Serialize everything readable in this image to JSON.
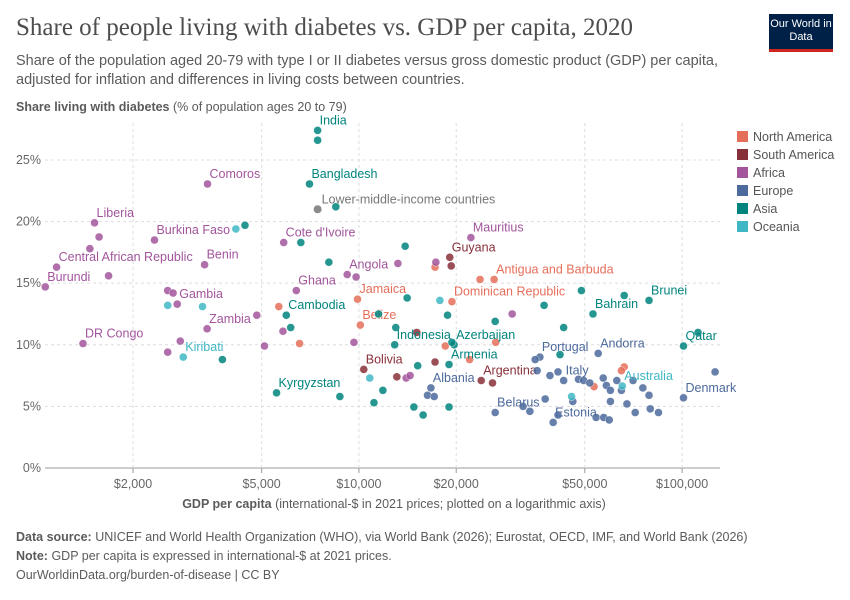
{
  "chart_data": {
    "type": "scatter",
    "title": "Share of people living with diabetes vs. GDP per capita, 2020",
    "subtitle": "Share of the population aged 20-79 with type I or II diabetes versus gross domestic product (GDP) per capita, adjusted for inflation and differences in living costs between countries.",
    "logo": "Our World in Data",
    "y_label": "Share living with diabetes",
    "y_label_note": "(% of population ages 20 to 79)",
    "x_label": "GDP per capita",
    "x_label_note": "(international-$ in 2021 prices; plotted on a logarithmic axis)",
    "log_x": true,
    "grid": true,
    "xlim": [
      1068,
      131000
    ],
    "ylim": [
      0,
      28
    ],
    "xticks": [
      {
        "value": 2000,
        "label": "$2,000"
      },
      {
        "value": 5000,
        "label": "$5,000"
      },
      {
        "value": 10000,
        "label": "$10,000"
      },
      {
        "value": 20000,
        "label": "$20,000"
      },
      {
        "value": 50000,
        "label": "$50,000"
      },
      {
        "value": 100000,
        "label": "$100,000"
      }
    ],
    "yticks": [
      {
        "value": 0,
        "label": "0%"
      },
      {
        "value": 5,
        "label": "5%"
      },
      {
        "value": 10,
        "label": "10%"
      },
      {
        "value": 15,
        "label": "15%"
      },
      {
        "value": 20,
        "label": "20%"
      },
      {
        "value": 25,
        "label": "25%"
      }
    ],
    "legend": "right",
    "series": [
      {
        "name": "North America",
        "color": "#e56e5a",
        "x": [
          26200,
          23700,
          17200,
          9900,
          19400,
          10100,
          5650,
          6550,
          18500,
          26500,
          22000,
          66200,
          64900,
          53400
        ],
        "values": [
          15.3,
          15.3,
          16.3,
          13.7,
          13.5,
          11.6,
          13.1,
          10.1,
          9.9,
          10.2,
          8.8,
          8.2,
          7.9,
          6.6
        ],
        "labels": [
          "Antigua and Barbuda",
          null,
          null,
          "Jamaica",
          "Dominican Republic",
          "Belize",
          null,
          null,
          null,
          null,
          null,
          null,
          null,
          null
        ]
      },
      {
        "name": "South America",
        "color": "#883039",
        "x": [
          19100,
          19300,
          10350,
          13100,
          23900,
          25900,
          15100,
          17200
        ],
        "values": [
          17.1,
          16.4,
          8.0,
          7.4,
          7.1,
          6.9,
          11.0,
          8.6
        ],
        "labels": [
          "Guyana",
          null,
          "Bolivia",
          null,
          "Argentina",
          null,
          null,
          null
        ]
      },
      {
        "name": "Africa",
        "color": "#a2559c",
        "x": [
          3400,
          1520,
          1570,
          2330,
          1470,
          5850,
          3330,
          1160,
          9200,
          9800,
          1680,
          1070,
          6400,
          2560,
          2660,
          2740,
          3390,
          4830,
          5820,
          1400,
          2560,
          2800,
          5100,
          22200,
          13200,
          17300,
          9650,
          14000,
          14400,
          29800
        ],
        "values": [
          23.05,
          19.9,
          18.75,
          18.5,
          17.8,
          18.3,
          16.5,
          16.3,
          15.7,
          15.5,
          15.6,
          14.7,
          14.4,
          14.4,
          14.2,
          13.3,
          11.3,
          12.4,
          11.1,
          10.1,
          9.4,
          10.3,
          9.9,
          18.7,
          16.6,
          16.7,
          10.2,
          7.3,
          7.5,
          12.5
        ],
        "labels": [
          "Comoros",
          "Liberia",
          null,
          "Burkina Faso",
          null,
          "Cote d'Ivoire",
          "Benin",
          "Central African Republic",
          "Angola",
          null,
          null,
          "Burundi",
          "Ghana",
          null,
          null,
          "Gambia",
          "Zambia",
          null,
          null,
          "DR Congo",
          null,
          null,
          null,
          "Mauritius",
          null,
          null,
          null,
          null,
          null,
          null
        ]
      },
      {
        "name": "Europe",
        "color": "#4c6a9c",
        "x": [
          36300,
          55000,
          43000,
          16700,
          26400,
          39900,
          101000,
          35100,
          35600,
          39000,
          41300,
          47800,
          49600,
          51800,
          57000,
          58300,
          60000,
          62800,
          70500,
          79000,
          79700,
          84500,
          126500,
          54200,
          57200,
          59500,
          64900,
          75600,
          16300,
          17100,
          33800,
          37700,
          32200,
          45900,
          41300,
          60000,
          67500,
          71600
        ],
        "values": [
          9.0,
          9.3,
          7.1,
          6.5,
          4.5,
          3.7,
          5.7,
          8.8,
          7.9,
          7.5,
          7.8,
          7.2,
          7.1,
          6.9,
          7.3,
          6.7,
          6.3,
          7.1,
          7.1,
          5.9,
          4.8,
          4.5,
          7.8,
          4.1,
          4.1,
          3.9,
          6.3,
          6.5,
          5.9,
          5.8,
          4.6,
          5.6,
          5.0,
          5.4,
          4.3,
          5.4,
          5.2,
          4.5
        ],
        "labels": [
          "Portugal",
          "Andorra",
          "Italy",
          "Albania",
          "Belarus",
          "Estonia",
          "Denmark",
          null,
          null,
          null,
          null,
          null,
          null,
          null,
          null,
          null,
          null,
          null,
          null,
          null,
          null,
          null,
          null,
          null,
          null,
          null,
          null,
          null,
          null,
          null,
          null,
          null,
          null,
          null,
          null,
          null,
          null,
          null
        ]
      },
      {
        "name": "Asia",
        "color": "#00847e",
        "x": [
          7450,
          7450,
          7030,
          8480,
          4440,
          6610,
          13900,
          8070,
          14100,
          79000,
          66200,
          53000,
          5960,
          6150,
          12900,
          19700,
          19400,
          101000,
          112000,
          5560,
          8730,
          19000,
          11130,
          11860,
          14790,
          15800,
          19000,
          3780,
          41900,
          43000,
          37400,
          26400,
          15200,
          18800,
          13000,
          48800,
          11500
        ],
        "values": [
          27.4,
          26.6,
          23.05,
          21.2,
          19.7,
          18.3,
          18.0,
          16.7,
          13.8,
          13.6,
          14.0,
          12.5,
          12.4,
          11.4,
          10.0,
          10.0,
          10.2,
          9.9,
          11.0,
          6.1,
          5.8,
          8.4,
          5.3,
          6.3,
          4.95,
          4.3,
          4.95,
          8.8,
          9.2,
          11.4,
          13.2,
          11.9,
          8.3,
          12.4,
          11.4,
          14.4,
          12.5
        ],
        "labels": [
          "India",
          null,
          "Bangladesh",
          null,
          null,
          null,
          null,
          null,
          null,
          "Brunei",
          null,
          "Bahrain",
          "Cambodia",
          null,
          "Indonesia",
          "Azerbaijan",
          null,
          "Qatar",
          null,
          "Kyrgyzstan",
          null,
          "Armenia",
          null,
          null,
          null,
          null,
          null,
          null,
          null,
          null,
          null,
          null,
          null,
          null,
          null,
          null,
          null
        ]
      },
      {
        "name": "Oceania",
        "color": "#40b7c4",
        "x": [
          2860,
          3280,
          2560,
          4160,
          65300,
          17800,
          10800,
          45500
        ],
        "values": [
          9.0,
          13.1,
          13.2,
          19.4,
          6.65,
          13.6,
          7.3,
          5.8
        ],
        "labels": [
          "Kiribati",
          null,
          null,
          null,
          "Australia",
          null,
          null,
          null
        ]
      }
    ],
    "annotations": [
      {
        "label": "Lower-middle-income countries",
        "x": 7450,
        "y": 21.0,
        "color": "#777777"
      }
    ],
    "footer": {
      "source_label": "Data source:",
      "source": "UNICEF and World Health Organization (WHO), via World Bank (2026); Eurostat, OECD, IMF, and World Bank (2026)",
      "note_label": "Note:",
      "note": "GDP per capita is expressed in international-$ at 2021 prices.",
      "url": "OurWorldinData.org/burden-of-disease | CC BY"
    }
  }
}
